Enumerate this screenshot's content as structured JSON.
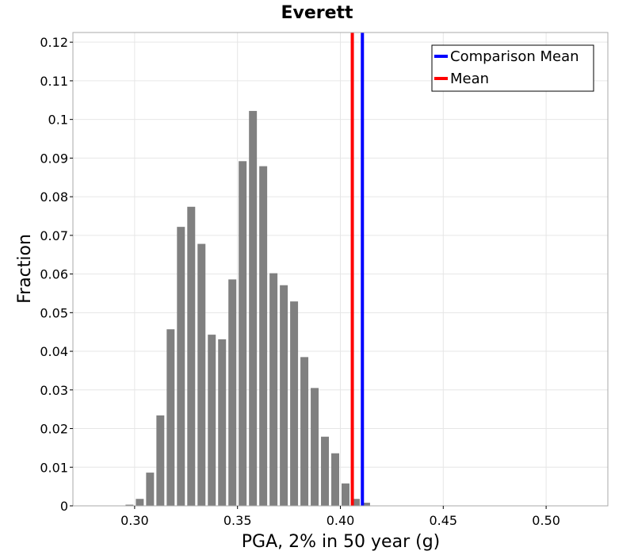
{
  "chart_data": {
    "type": "bar",
    "title": "Everett",
    "xlabel": "PGA, 2% in 50 year (g)",
    "ylabel": "Fraction",
    "xlim": [
      0.27,
      0.53
    ],
    "ylim": [
      0,
      0.1225
    ],
    "x_ticks": [
      0.3,
      0.35,
      0.4,
      0.45,
      0.5
    ],
    "x_tick_labels": [
      "0.30",
      "0.35",
      "0.40",
      "0.45",
      "0.50"
    ],
    "y_ticks": [
      0,
      0.01,
      0.02,
      0.03,
      0.04,
      0.05,
      0.06,
      0.07,
      0.08,
      0.09,
      0.1,
      0.11,
      0.12
    ],
    "y_tick_labels": [
      "0",
      "0.01",
      "0.02",
      "0.03",
      "0.04",
      "0.05",
      "0.06",
      "0.07",
      "0.08",
      "0.09",
      "0.1",
      "0.11",
      "0.12"
    ],
    "bin_width": 0.005,
    "bins": [
      {
        "x": 0.2775,
        "value": 0.0
      },
      {
        "x": 0.2825,
        "value": 0.0
      },
      {
        "x": 0.2875,
        "value": 0.0
      },
      {
        "x": 0.2925,
        "value": 0.0
      },
      {
        "x": 0.2975,
        "value": 0.0003
      },
      {
        "x": 0.3025,
        "value": 0.0018
      },
      {
        "x": 0.3075,
        "value": 0.0086
      },
      {
        "x": 0.3125,
        "value": 0.0234
      },
      {
        "x": 0.3175,
        "value": 0.0457
      },
      {
        "x": 0.3225,
        "value": 0.0722
      },
      {
        "x": 0.3275,
        "value": 0.0774
      },
      {
        "x": 0.3325,
        "value": 0.0678
      },
      {
        "x": 0.3375,
        "value": 0.0443
      },
      {
        "x": 0.3425,
        "value": 0.0431
      },
      {
        "x": 0.3475,
        "value": 0.0586
      },
      {
        "x": 0.3525,
        "value": 0.0892
      },
      {
        "x": 0.3575,
        "value": 0.1022
      },
      {
        "x": 0.3625,
        "value": 0.0879
      },
      {
        "x": 0.3675,
        "value": 0.0602
      },
      {
        "x": 0.3725,
        "value": 0.0571
      },
      {
        "x": 0.3775,
        "value": 0.0529
      },
      {
        "x": 0.3825,
        "value": 0.0385
      },
      {
        "x": 0.3875,
        "value": 0.0305
      },
      {
        "x": 0.3925,
        "value": 0.0179
      },
      {
        "x": 0.3975,
        "value": 0.0136
      },
      {
        "x": 0.4025,
        "value": 0.0058
      },
      {
        "x": 0.4075,
        "value": 0.0018
      },
      {
        "x": 0.4125,
        "value": 0.0008
      }
    ],
    "bar_color": "#808080",
    "vlines": [
      {
        "name": "Comparison Mean",
        "x": 0.4107,
        "color": "#0000ff"
      },
      {
        "name": "Mean",
        "x": 0.4058,
        "color": "#ff0000"
      }
    ],
    "legend_position": "top-right",
    "grid": true
  }
}
